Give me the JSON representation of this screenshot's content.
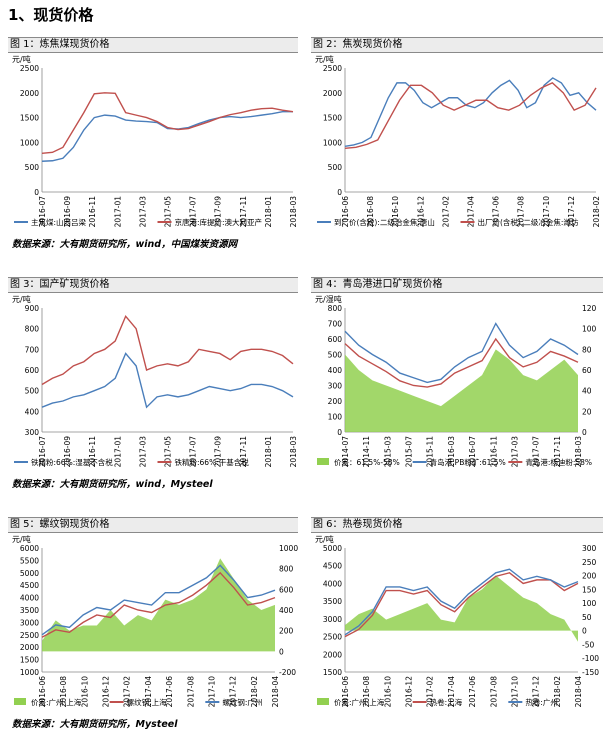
{
  "section_title": "1、现货价格",
  "captions": [
    "图 1：炼焦煤现货价格",
    "图 2：焦炭现货价格",
    "图 3：国产矿现货价格",
    "图 4：青岛港进口矿现货价格",
    "图 5：螺纹钢现货价格",
    "图 6：热卷现货价格"
  ],
  "sources": [
    "数据来源：大有期货研究所，wind，中国煤炭资源网",
    "数据来源：大有期货研究所，wind，Mysteel",
    "数据来源：大有期货研究所，Mysteel"
  ],
  "chart_data": [
    {
      "type": "line",
      "unit": "元/吨",
      "ylim": [
        0,
        2500
      ],
      "yticks": [
        0,
        500,
        1000,
        1500,
        2000,
        2500
      ],
      "x_ticks": [
        "2016-07",
        "2016-09",
        "2016-11",
        "2017-01",
        "2017-03",
        "2017-05",
        "2017-07",
        "2017-09",
        "2017-11",
        "2018-01",
        "2018-03"
      ],
      "series": [
        {
          "name": "主焦煤:山西吕梁",
          "color": "#4a7ebb",
          "values": [
            620,
            630,
            680,
            900,
            1250,
            1500,
            1550,
            1530,
            1450,
            1430,
            1420,
            1400,
            1280,
            1270,
            1300,
            1380,
            1450,
            1500,
            1520,
            1500,
            1520,
            1550,
            1580,
            1620,
            1620
          ]
        },
        {
          "name": "京唐港:库提价:澳大利亚产",
          "color": "#c0504d",
          "values": [
            780,
            800,
            900,
            1250,
            1600,
            1980,
            2000,
            1990,
            1600,
            1550,
            1500,
            1420,
            1300,
            1260,
            1280,
            1350,
            1420,
            1500,
            1560,
            1600,
            1650,
            1680,
            1690,
            1650,
            1620
          ]
        }
      ]
    },
    {
      "type": "line",
      "unit": "元/吨",
      "ylim": [
        0,
        2500
      ],
      "yticks": [
        0,
        500,
        1000,
        1500,
        2000,
        2500
      ],
      "x_ticks": [
        "2016-06",
        "2016-08",
        "2016-10",
        "2016-12",
        "2017-02",
        "2017-04",
        "2017-06",
        "2017-08",
        "2017-10",
        "2017-12",
        "2018-02"
      ],
      "series": [
        {
          "name": "到厂价(含税):二级冶金焦:唐山",
          "color": "#4a7ebb",
          "values": [
            920,
            950,
            1000,
            1100,
            1500,
            1900,
            2200,
            2200,
            2050,
            1800,
            1700,
            1800,
            1900,
            1900,
            1750,
            1700,
            1800,
            2000,
            2150,
            2250,
            2050,
            1700,
            1800,
            2150,
            2300,
            2200,
            1950,
            2000,
            1800,
            1650
          ]
        },
        {
          "name": "出厂价(含税):二级冶金焦:潍坊",
          "color": "#c0504d",
          "values": [
            880,
            900,
            960,
            1050,
            1450,
            1850,
            2150,
            2150,
            2000,
            1750,
            1650,
            1750,
            1850,
            1850,
            1700,
            1650,
            1750,
            1950,
            2100,
            2200,
            2000,
            1650,
            1750,
            2100
          ]
        }
      ]
    },
    {
      "type": "line",
      "unit": "元/吨",
      "ylim": [
        300,
        900
      ],
      "yticks": [
        300,
        400,
        500,
        600,
        700,
        800,
        900
      ],
      "x_ticks": [
        "2016-07",
        "2016-09",
        "2016-11",
        "2017-01",
        "2017-03",
        "2017-05",
        "2017-07",
        "2017-09",
        "2017-11",
        "2018-01",
        "2018-03"
      ],
      "series": [
        {
          "name": "铁精粉:66%:湿基不含税",
          "color": "#4a7ebb",
          "values": [
            420,
            440,
            450,
            470,
            480,
            500,
            520,
            560,
            680,
            620,
            420,
            470,
            480,
            470,
            480,
            500,
            520,
            510,
            500,
            510,
            530,
            530,
            520,
            500,
            470
          ]
        },
        {
          "name": "铁精粉:66%:干基含税",
          "color": "#c0504d",
          "values": [
            530,
            560,
            580,
            620,
            640,
            680,
            700,
            740,
            860,
            800,
            600,
            620,
            630,
            620,
            640,
            700,
            690,
            680,
            650,
            690,
            700,
            700,
            690,
            670,
            630
          ]
        }
      ]
    },
    {
      "type": "area",
      "unit": "元/湿吨",
      "yleft": [
        0,
        800
      ],
      "yticks_left": [
        0,
        100,
        200,
        300,
        400,
        500,
        600,
        700,
        800
      ],
      "yright": [
        0,
        120
      ],
      "yticks_right": [
        0,
        20,
        40,
        60,
        80,
        100,
        120
      ],
      "x_ticks": [
        "2014-07",
        "2014-11",
        "2015-03",
        "2015-07",
        "2015-11",
        "2016-03",
        "2016-07",
        "2016-11",
        "2017-03",
        "2017-07",
        "2017-11",
        "2018-03"
      ],
      "series": [
        {
          "name": "价差：61.5%-58%",
          "color": "#92d050",
          "axis": "right",
          "values": [
            75,
            60,
            50,
            45,
            40,
            35,
            30,
            25,
            35,
            45,
            55,
            80,
            70,
            55,
            50,
            60,
            70,
            55
          ]
        },
        {
          "name": "青岛港:PB粉矿:61.5%",
          "color": "#4a7ebb",
          "axis": "left",
          "values": [
            650,
            560,
            500,
            450,
            380,
            350,
            320,
            340,
            420,
            480,
            520,
            700,
            560,
            480,
            520,
            600,
            560,
            500
          ]
        },
        {
          "name": "青岛港:杨迪粉:58%",
          "color": "#c0504d",
          "axis": "left",
          "values": [
            570,
            490,
            440,
            390,
            330,
            300,
            290,
            310,
            380,
            420,
            460,
            600,
            480,
            420,
            450,
            520,
            490,
            450
          ]
        }
      ]
    },
    {
      "type": "area",
      "unit": "元/吨",
      "yleft": [
        1000,
        6000
      ],
      "yticks_left": [
        1000,
        1500,
        2000,
        2500,
        3000,
        3500,
        4000,
        4500,
        5000,
        5500,
        6000
      ],
      "yright": [
        -200,
        1000
      ],
      "yticks_right": [
        -200,
        0,
        200,
        400,
        600,
        800,
        1000
      ],
      "x_ticks": [
        "2016-06",
        "2016-08",
        "2016-10",
        "2016-12",
        "2017-02",
        "2017-04",
        "2017-06",
        "2017-08",
        "2017-10",
        "2017-12",
        "2018-02",
        "2018-04"
      ],
      "series": [
        {
          "name": "价差:广州-上海",
          "color": "#92d050",
          "axis": "right",
          "values": [
            100,
            300,
            200,
            250,
            250,
            400,
            250,
            350,
            300,
            500,
            450,
            500,
            600,
            900,
            700,
            500,
            400,
            450
          ]
        },
        {
          "name": "螺纹钢:上海",
          "color": "#c0504d",
          "axis": "left",
          "values": [
            2400,
            2700,
            2600,
            3000,
            3300,
            3200,
            3700,
            3500,
            3400,
            3700,
            3800,
            4100,
            4500,
            5000,
            4400,
            3700,
            3800,
            4000
          ]
        },
        {
          "name": "螺纹钢:广州",
          "color": "#4a7ebb",
          "axis": "left",
          "values": [
            2500,
            2900,
            2800,
            3300,
            3600,
            3500,
            3900,
            3800,
            3700,
            4200,
            4200,
            4500,
            4800,
            5300,
            4700,
            4000,
            4100,
            4300
          ]
        }
      ]
    },
    {
      "type": "area",
      "unit": "元/吨",
      "yleft": [
        1500,
        5000
      ],
      "yticks_left": [
        1500,
        2000,
        2500,
        3000,
        3500,
        4000,
        4500,
        5000
      ],
      "yright": [
        -150,
        300
      ],
      "yticks_right": [
        -150,
        -100,
        -50,
        0,
        50,
        100,
        150,
        200,
        250,
        300
      ],
      "x_ticks": [
        "2016-06",
        "2016-08",
        "2016-10",
        "2016-12",
        "2017-02",
        "2017-04",
        "2017-06",
        "2017-08",
        "2017-10",
        "2017-12",
        "2018-02",
        "2018-04"
      ],
      "series": [
        {
          "name": "价差:广州-上海",
          "color": "#92d050",
          "axis": "right",
          "values": [
            20,
            60,
            80,
            40,
            60,
            80,
            100,
            40,
            30,
            120,
            150,
            200,
            160,
            120,
            100,
            60,
            40,
            -40
          ]
        },
        {
          "name": "热卷:上海",
          "color": "#c0504d",
          "axis": "left",
          "values": [
            2500,
            2700,
            3100,
            3800,
            3800,
            3700,
            3800,
            3400,
            3200,
            3600,
            3900,
            4200,
            4300,
            4000,
            4100,
            4100,
            3800,
            4000
          ]
        },
        {
          "name": "热卷:广州",
          "color": "#4a7ebb",
          "axis": "left",
          "values": [
            2550,
            2800,
            3200,
            3900,
            3900,
            3800,
            3900,
            3500,
            3300,
            3700,
            4000,
            4300,
            4400,
            4100,
            4200,
            4100,
            3900,
            4050
          ]
        }
      ]
    }
  ]
}
